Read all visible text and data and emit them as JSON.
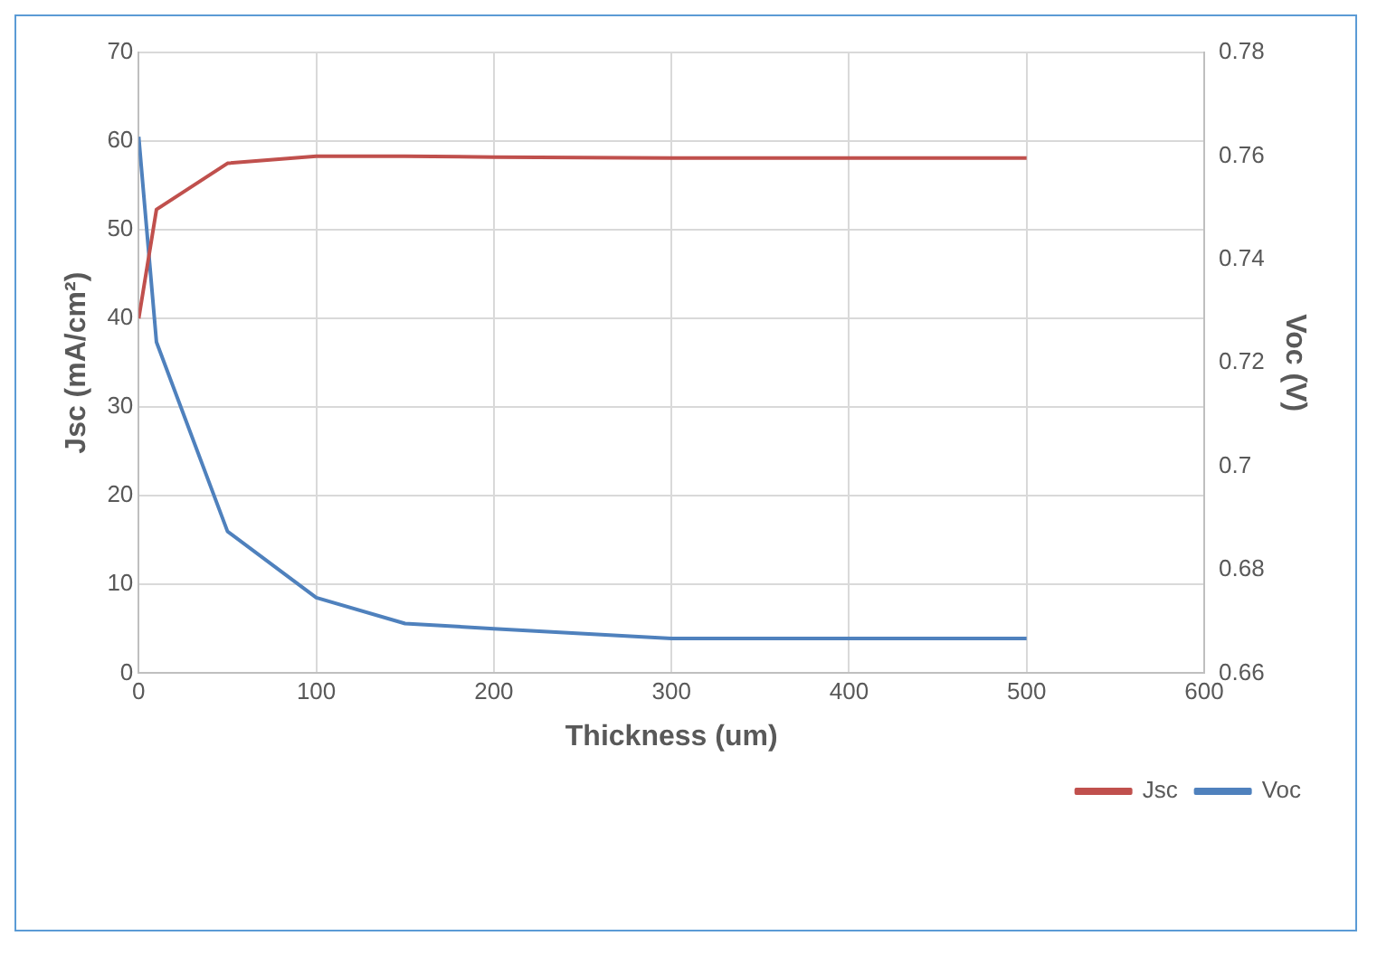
{
  "chart_data": {
    "type": "line",
    "xlabel": "Thickness (um)",
    "ylabel": "Jsc (mA/cm²)",
    "y2label": "Voc (V)",
    "x": [
      0,
      10,
      50,
      100,
      150,
      200,
      300,
      400,
      500
    ],
    "series": [
      {
        "name": "Jsc",
        "color": "#c0504d",
        "values": [
          40,
          52.3,
          57.5,
          58.3,
          58.3,
          58.2,
          58.1,
          58.1,
          58.1
        ]
      },
      {
        "name": "Voc",
        "color": "#4f81bd",
        "axis": "y2",
        "values": [
          0.7637,
          0.724,
          0.6874,
          0.6746,
          0.6696,
          0.6686,
          0.6667,
          0.6667,
          0.6667
        ]
      }
    ],
    "xlim": [
      0,
      600
    ],
    "xticks": [
      0,
      100,
      200,
      300,
      400,
      500,
      600
    ],
    "ylim": [
      0,
      70
    ],
    "yticks": [
      0,
      10,
      20,
      30,
      40,
      50,
      60,
      70
    ],
    "y2lim": [
      0.66,
      0.78
    ],
    "y2ticks": [
      {
        "value": 0.66,
        "label": "0.66"
      },
      {
        "value": 0.68,
        "label": "0.68"
      },
      {
        "value": 0.7,
        "label": "0.7"
      },
      {
        "value": 0.72,
        "label": "0.72"
      },
      {
        "value": 0.74,
        "label": "0.74"
      },
      {
        "value": 0.76,
        "label": "0.76"
      },
      {
        "value": 0.78,
        "label": "0.78"
      }
    ],
    "grid": true,
    "legend": "bottom",
    "marker": "none",
    "line_style": "solid"
  }
}
